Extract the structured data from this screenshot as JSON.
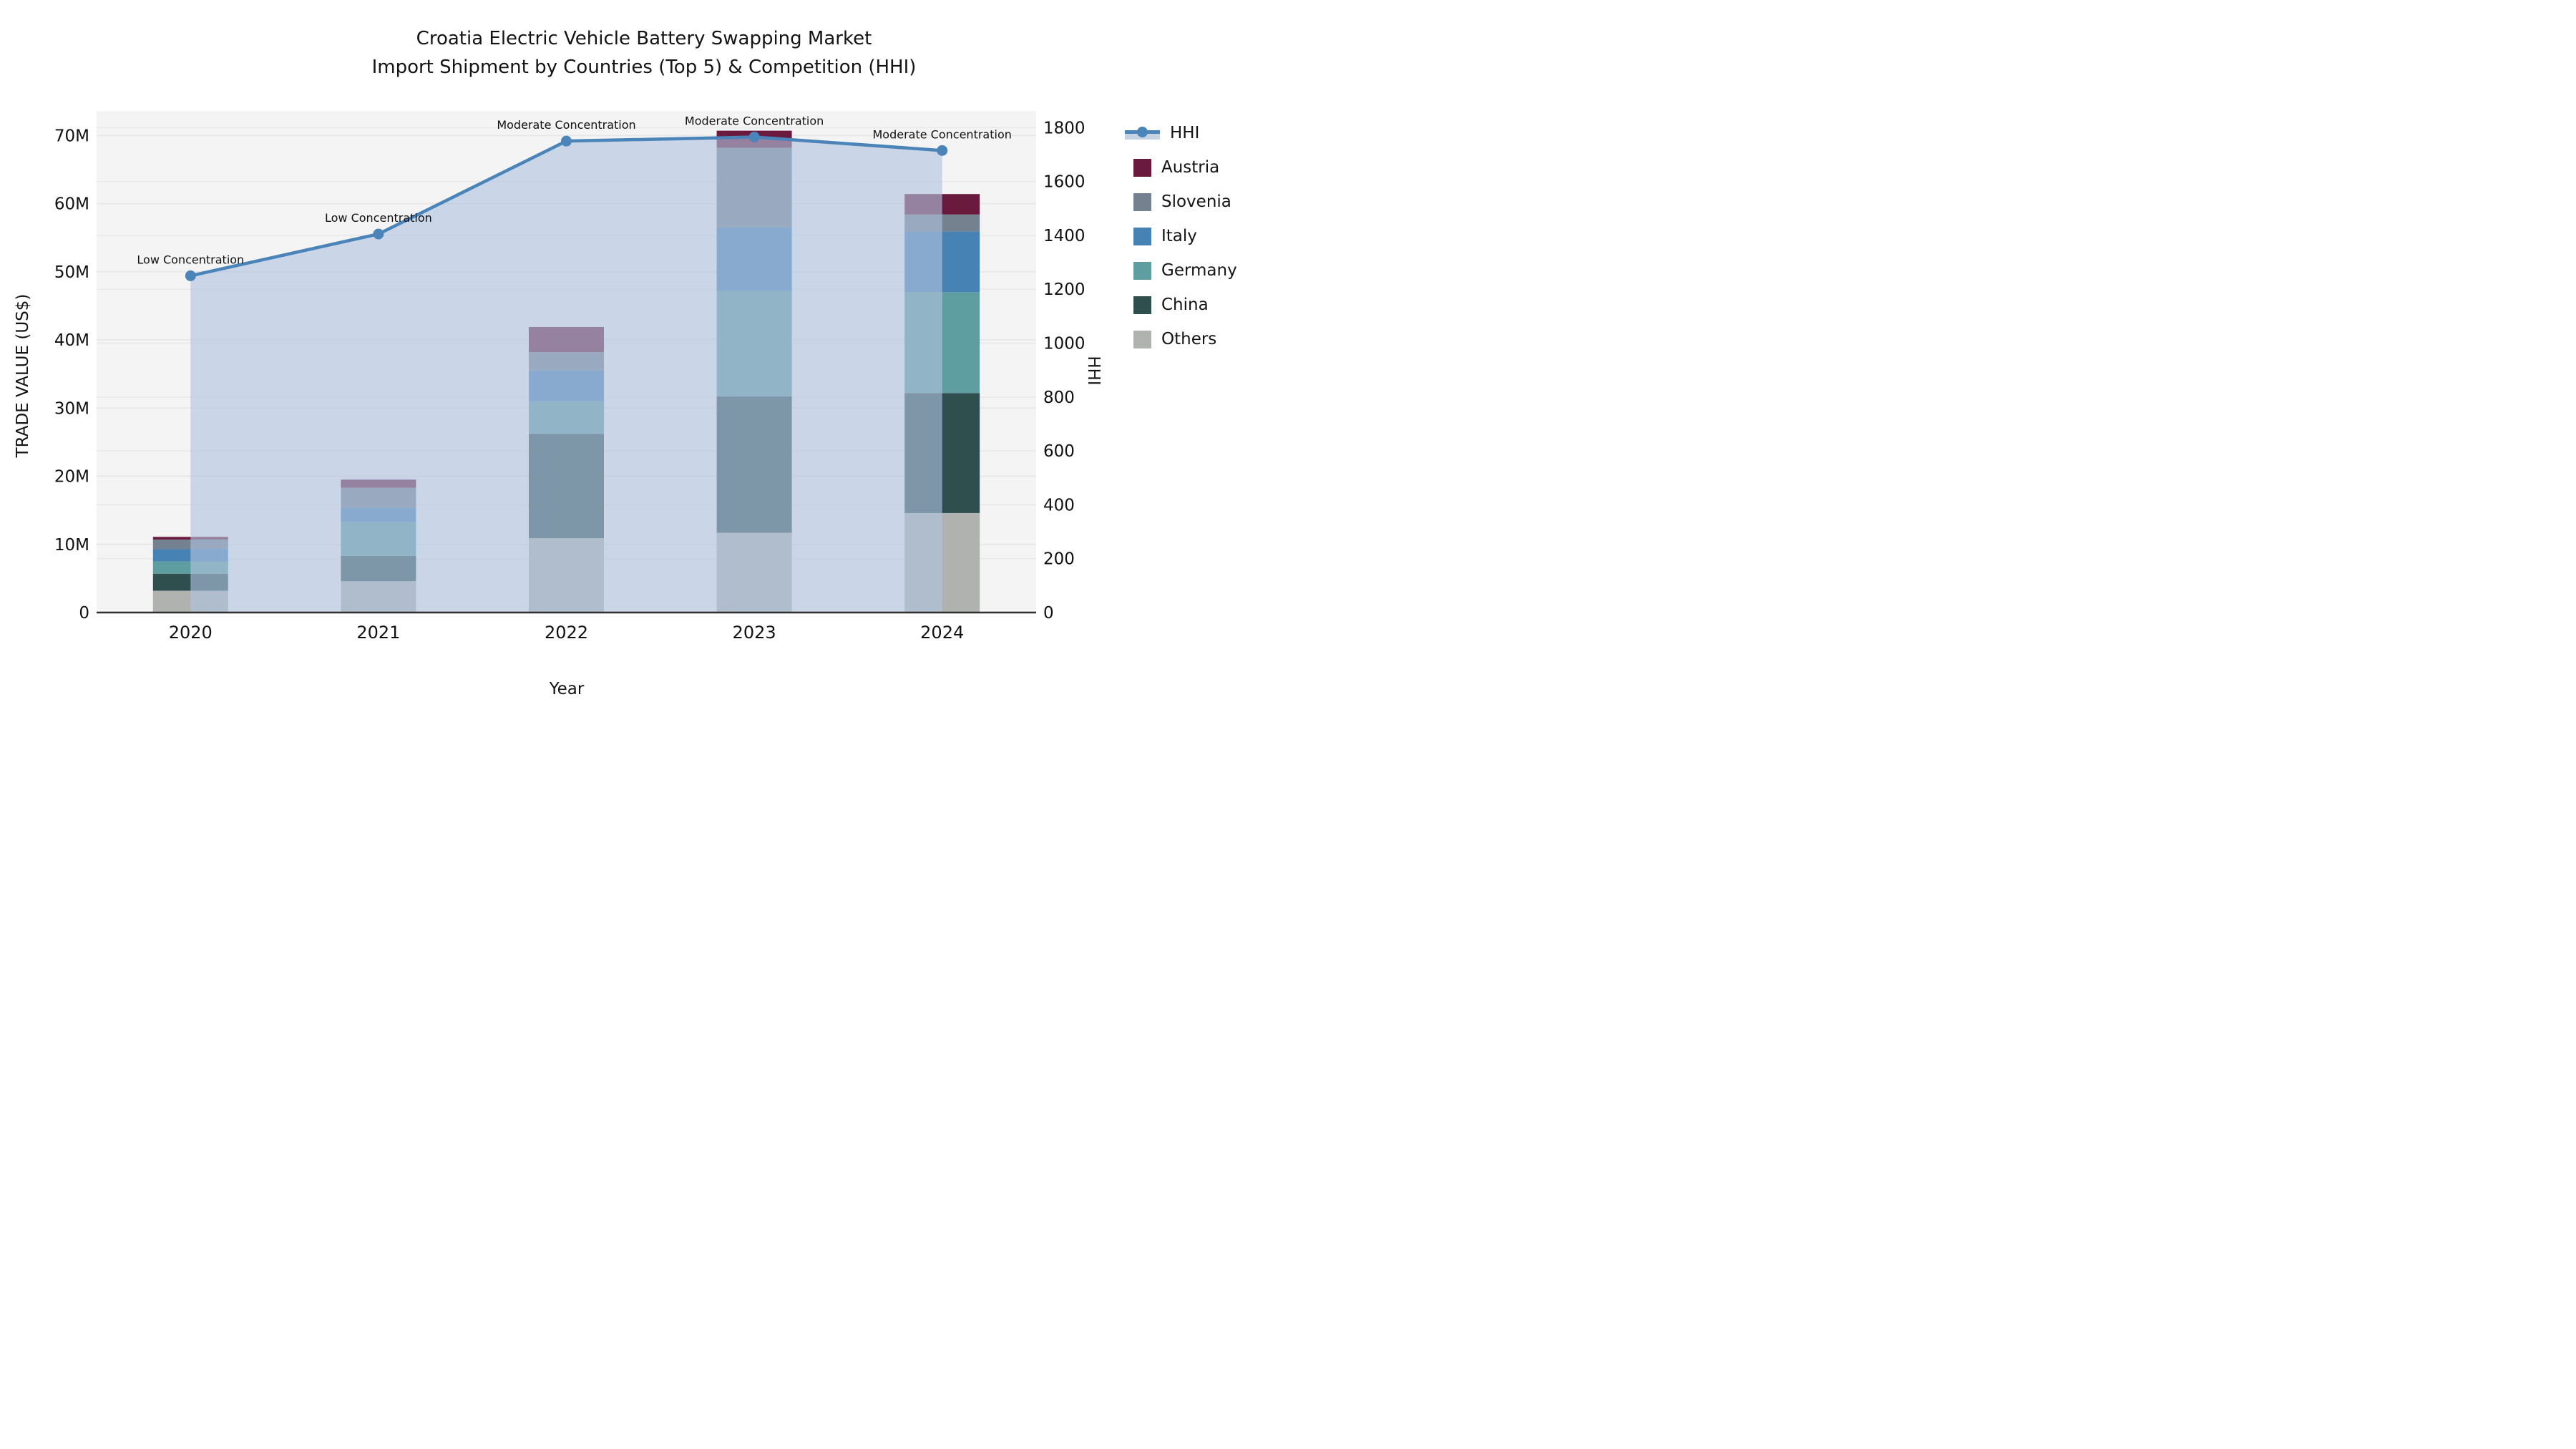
{
  "title": {
    "line1": "Croatia Electric Vehicle Battery Swapping Market",
    "line2": "Import Shipment by Countries (Top 5) & Competition (HHI)"
  },
  "axes": {
    "y_left": {
      "label": "TRADE VALUE (US$)",
      "tick_labels": [
        "0",
        "10M",
        "20M",
        "30M",
        "40M",
        "50M",
        "60M",
        "70M"
      ],
      "tick_values": [
        0,
        10,
        20,
        30,
        40,
        50,
        60,
        70
      ]
    },
    "y_right": {
      "label": "HHI",
      "tick_labels": [
        "0",
        "200",
        "400",
        "600",
        "800",
        "1000",
        "1200",
        "1400",
        "1600",
        "1800"
      ],
      "tick_values": [
        0,
        200,
        400,
        600,
        800,
        1000,
        1200,
        1400,
        1600,
        1800
      ]
    },
    "x": {
      "label": "Year",
      "tick_labels": [
        "2020",
        "2021",
        "2022",
        "2023",
        "2024"
      ]
    }
  },
  "legend": {
    "items": [
      {
        "label": "HHI",
        "type": "line",
        "color": "#4a84b8"
      },
      {
        "label": "Austria",
        "type": "box",
        "color": "#6a1a3c"
      },
      {
        "label": "Slovenia",
        "type": "box",
        "color": "#74818f"
      },
      {
        "label": "Italy",
        "type": "box",
        "color": "#4682b4"
      },
      {
        "label": "Germany",
        "type": "box",
        "color": "#5f9ea0"
      },
      {
        "label": "China",
        "type": "box",
        "color": "#2f4f4f"
      },
      {
        "label": "Others",
        "type": "box",
        "color": "#b0b2b0"
      }
    ]
  },
  "colors": {
    "plot_bg": "#f4f4f4",
    "grid": "#e8e8e8",
    "spine": "#2f2f2f",
    "hhi_line": "#4a84b8",
    "hhi_fill": "rgba(176,196,222,0.62)"
  },
  "chart_data": {
    "type": "bar",
    "stacked": true,
    "title": "Croatia Electric Vehicle Battery Swapping Market — Import Shipment by Countries (Top 5) & Competition (HHI)",
    "xlabel": "Year",
    "ylabel": "TRADE VALUE (US$)",
    "y2label": "HHI",
    "categories": [
      "2020",
      "2021",
      "2022",
      "2023",
      "2024"
    ],
    "unit": "M US$",
    "ylim": [
      0,
      73.6
    ],
    "y2lim": [
      0,
      1862
    ],
    "grid": true,
    "legend_position": "right",
    "series": [
      {
        "name": "Others",
        "color": "#b0b2b0",
        "values": [
          3.2,
          4.6,
          10.9,
          11.7,
          14.6
        ]
      },
      {
        "name": "China",
        "color": "#2f4f4f",
        "values": [
          2.5,
          3.7,
          15.3,
          20.0,
          17.6
        ]
      },
      {
        "name": "Germany",
        "color": "#5f9ea0",
        "values": [
          1.8,
          5.0,
          4.8,
          15.5,
          14.8
        ]
      },
      {
        "name": "Italy",
        "color": "#4682b4",
        "values": [
          1.8,
          2.1,
          4.5,
          9.3,
          8.9
        ]
      },
      {
        "name": "Slovenia",
        "color": "#74818f",
        "values": [
          1.4,
          2.9,
          2.7,
          11.7,
          2.5
        ]
      },
      {
        "name": "Austria",
        "color": "#6a1a3c",
        "values": [
          0.4,
          1.2,
          3.7,
          2.5,
          3.0
        ]
      }
    ],
    "bar_totals": [
      11.1,
      19.5,
      41.9,
      70.7,
      61.4
    ],
    "line_series": {
      "name": "HHI",
      "axis": "right",
      "color": "#4a84b8",
      "fill_under": true,
      "values": [
        1250,
        1405,
        1750,
        1765,
        1715
      ]
    },
    "annotations": [
      {
        "x": "2020",
        "text": "Low Concentration"
      },
      {
        "x": "2021",
        "text": "Low Concentration"
      },
      {
        "x": "2022",
        "text": "Moderate Concentration"
      },
      {
        "x": "2023",
        "text": "Moderate Concentration"
      },
      {
        "x": "2024",
        "text": "Moderate Concentration"
      }
    ]
  }
}
